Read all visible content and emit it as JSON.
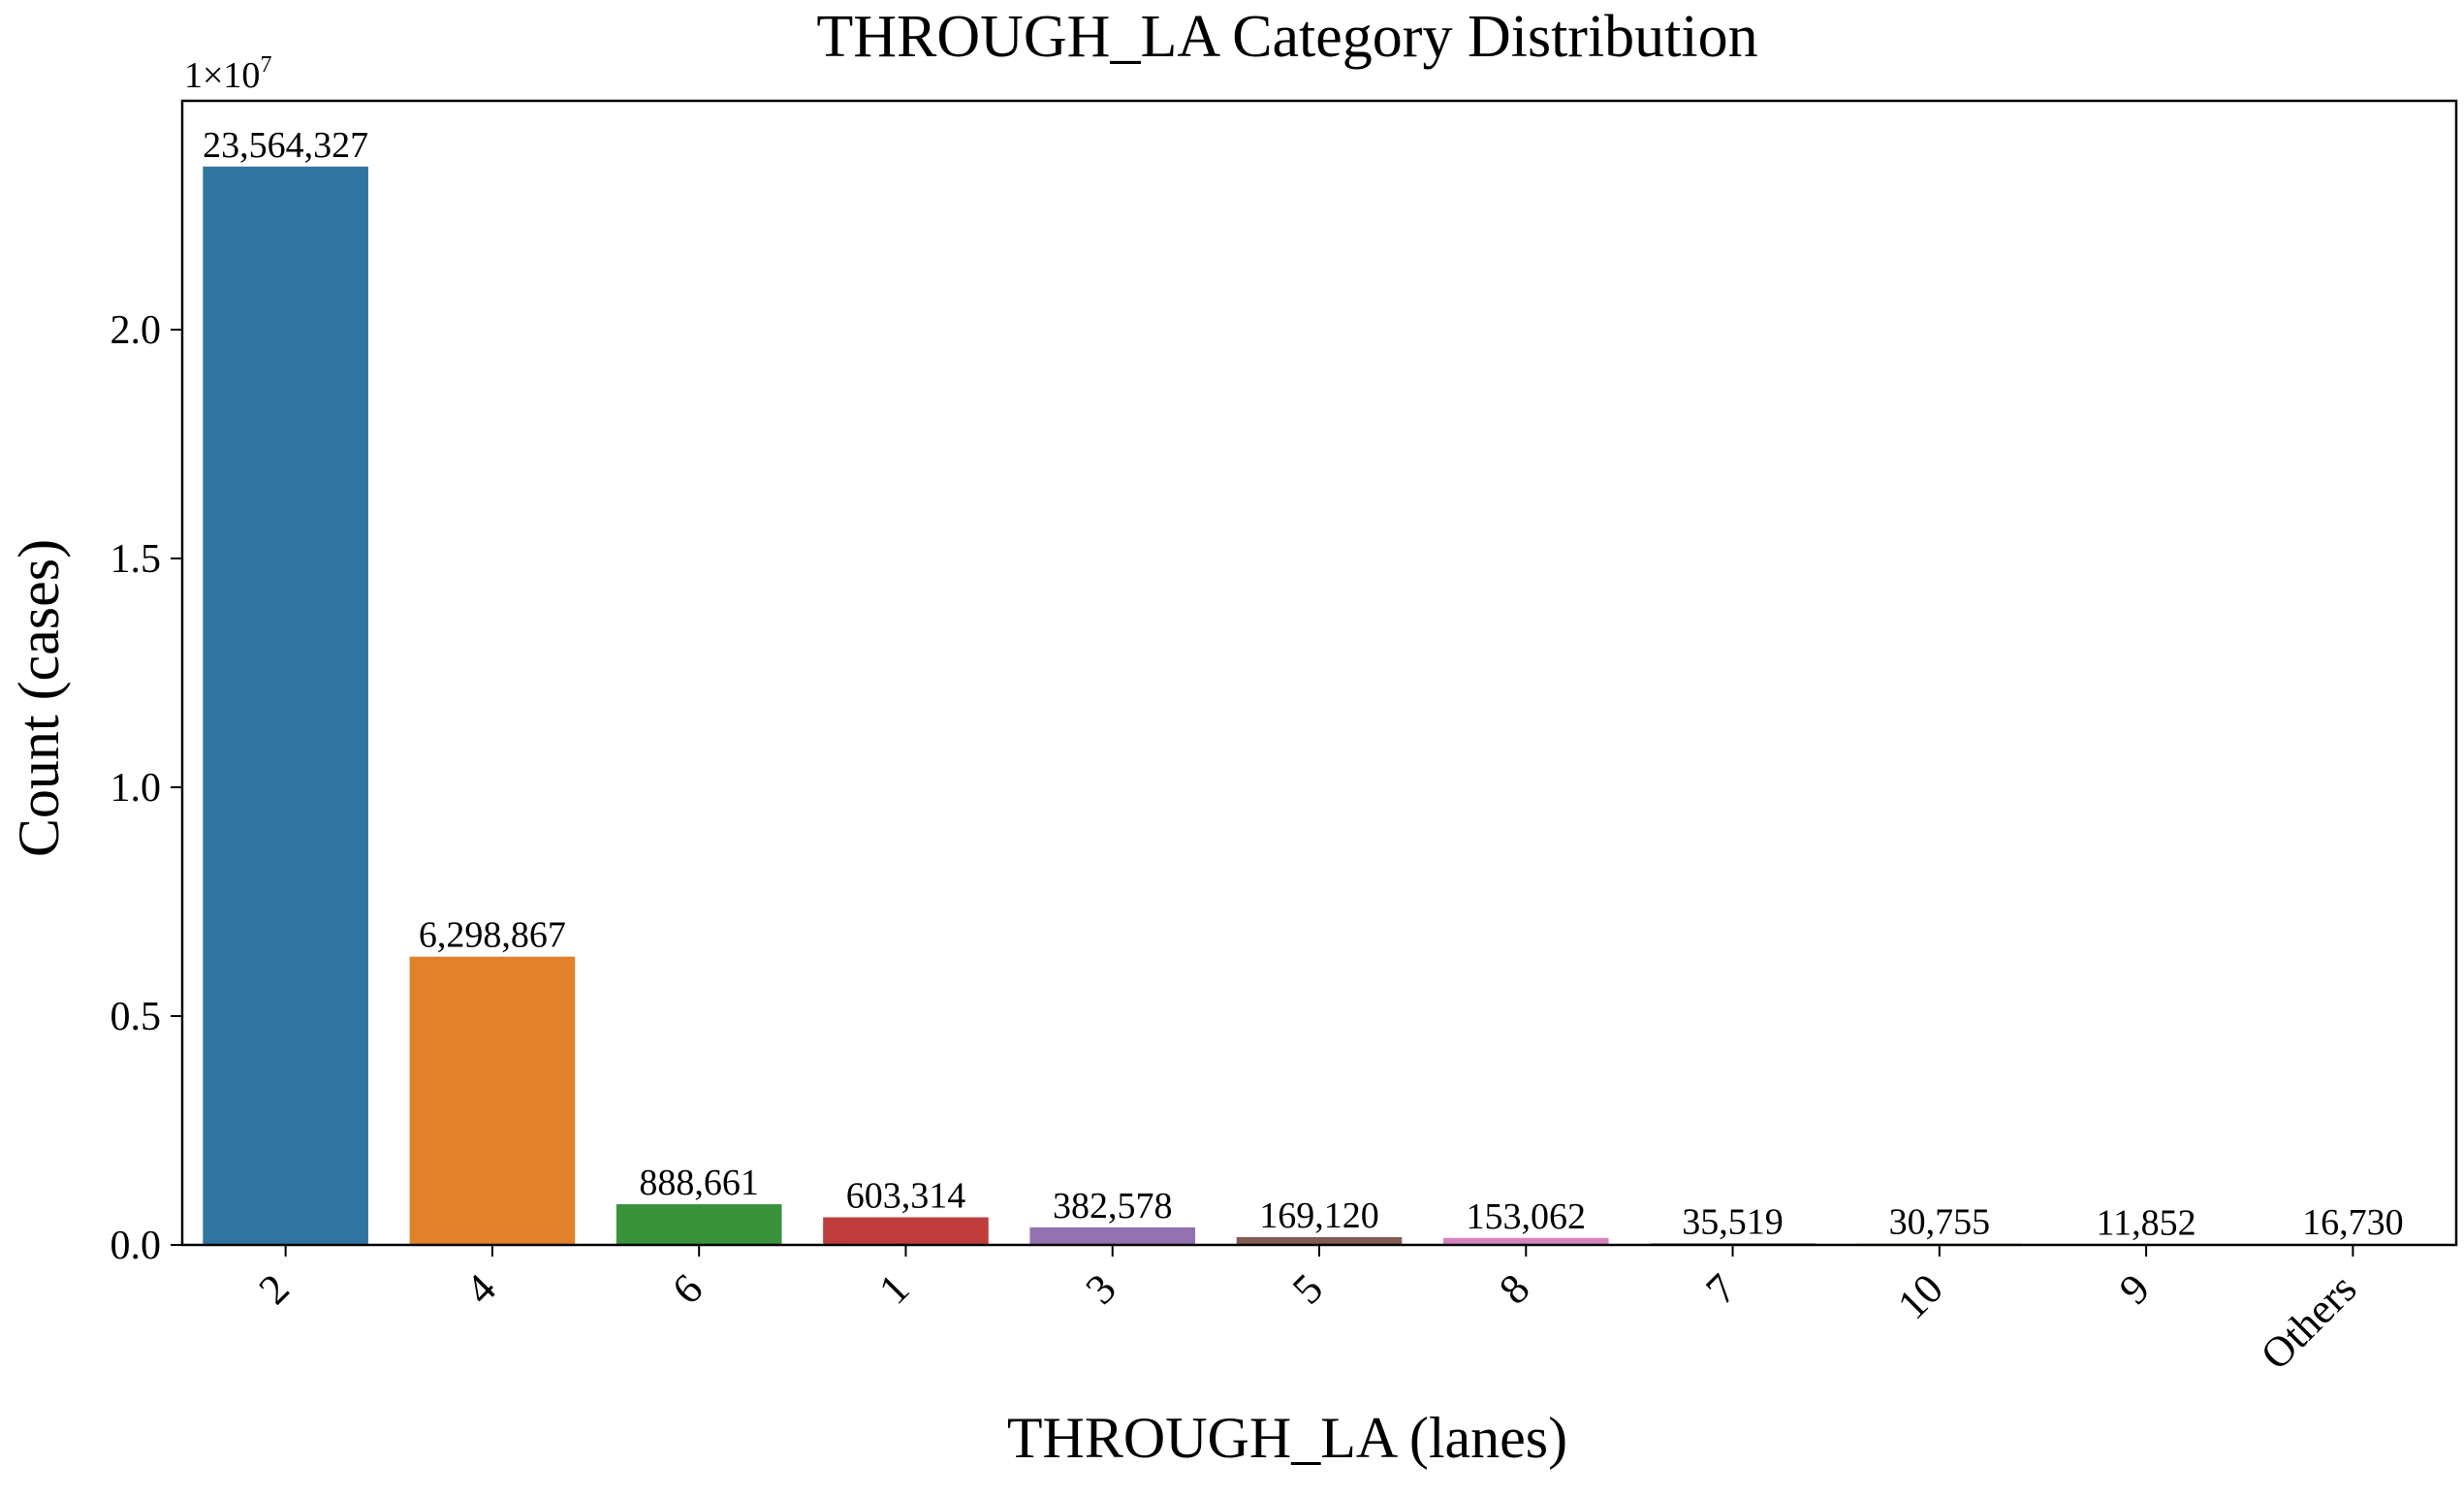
{
  "chart_data": {
    "type": "bar",
    "title": "THROUGH_LA Category Distribution",
    "xlabel": "THROUGH_LA (lanes)",
    "ylabel": "Count (cases)",
    "offset_label": "1×10",
    "offset_exponent": "7",
    "categories": [
      "2",
      "4",
      "6",
      "1",
      "3",
      "5",
      "8",
      "7",
      "10",
      "9",
      "Others"
    ],
    "values": [
      23564327,
      6298867,
      888661,
      603314,
      382578,
      169120,
      153062,
      35519,
      30755,
      11852,
      16730
    ],
    "value_labels": [
      "23,564,327",
      "6,298,867",
      "888,661",
      "603,314",
      "382,578",
      "169,120",
      "153,062",
      "35,519",
      "30,755",
      "11,852",
      "16,730"
    ],
    "colors": [
      "#3274a1",
      "#e1812c",
      "#3a923a",
      "#c03d3e",
      "#9372b2",
      "#845b53",
      "#d684bd",
      "#7f7f7f",
      "#a9aa35",
      "#2fbdcd",
      "#3274a1"
    ],
    "yticks": [
      0,
      5000000,
      10000000,
      15000000,
      20000000
    ],
    "ytick_labels": [
      "0.0",
      "0.5",
      "1.0",
      "1.5",
      "2.0"
    ],
    "ylim": [
      0,
      25000000
    ],
    "grid": false,
    "legend": "none"
  }
}
